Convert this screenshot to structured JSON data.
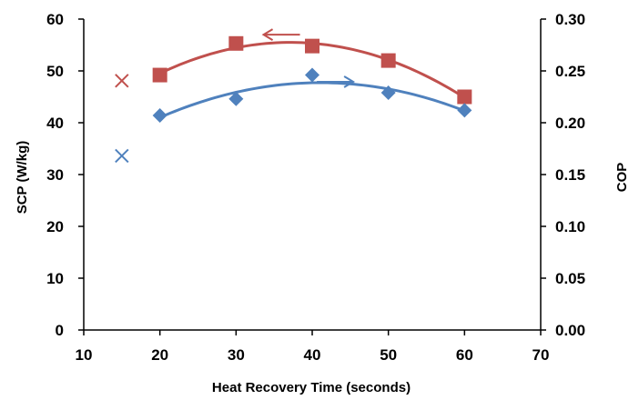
{
  "chart_data": {
    "type": "scatter",
    "xlabel": "Heat Recovery Time (seconds)",
    "ylabel_left": "SCP (W/kg)",
    "ylabel_right": "COP",
    "xlim": [
      10,
      70
    ],
    "ylim_left": [
      0,
      60
    ],
    "ylim_right": [
      0.0,
      0.3
    ],
    "x_ticks": [
      "10",
      "20",
      "30",
      "40",
      "50",
      "60",
      "70"
    ],
    "y_left_ticks": [
      "0",
      "10",
      "20",
      "30",
      "40",
      "50",
      "60"
    ],
    "y_right_ticks": [
      "0.00",
      "0.05",
      "0.10",
      "0.15",
      "0.20",
      "0.25",
      "0.30"
    ],
    "grid": false,
    "legend": "none",
    "series": [
      {
        "axis": "left",
        "marker": "square",
        "color": "#C0504D",
        "x": [
          20,
          30,
          40,
          50,
          60
        ],
        "y": [
          49.2,
          55.3,
          54.8,
          52.0,
          45.0
        ],
        "trendline": "polynomial-2",
        "outlier": {
          "x": 15,
          "y": 48.1,
          "marker": "cross"
        }
      },
      {
        "axis": "right",
        "marker": "diamond",
        "color": "#4F81BD",
        "x": [
          20,
          30,
          40,
          50,
          60
        ],
        "y": [
          0.207,
          0.223,
          0.246,
          0.229,
          0.212
        ],
        "trendline": "polynomial-2",
        "outlier": {
          "x": 15,
          "y": 0.168,
          "marker": "cross"
        }
      }
    ],
    "annotations": [
      {
        "shape": "arrow-left",
        "meaning": "points to left axis",
        "color": "#C0504D",
        "x": 36,
        "y": 57.0
      },
      {
        "shape": "arrow-right",
        "meaning": "points to right axis",
        "color": "#4F81BD",
        "x": 43,
        "y": 47.9
      }
    ]
  }
}
